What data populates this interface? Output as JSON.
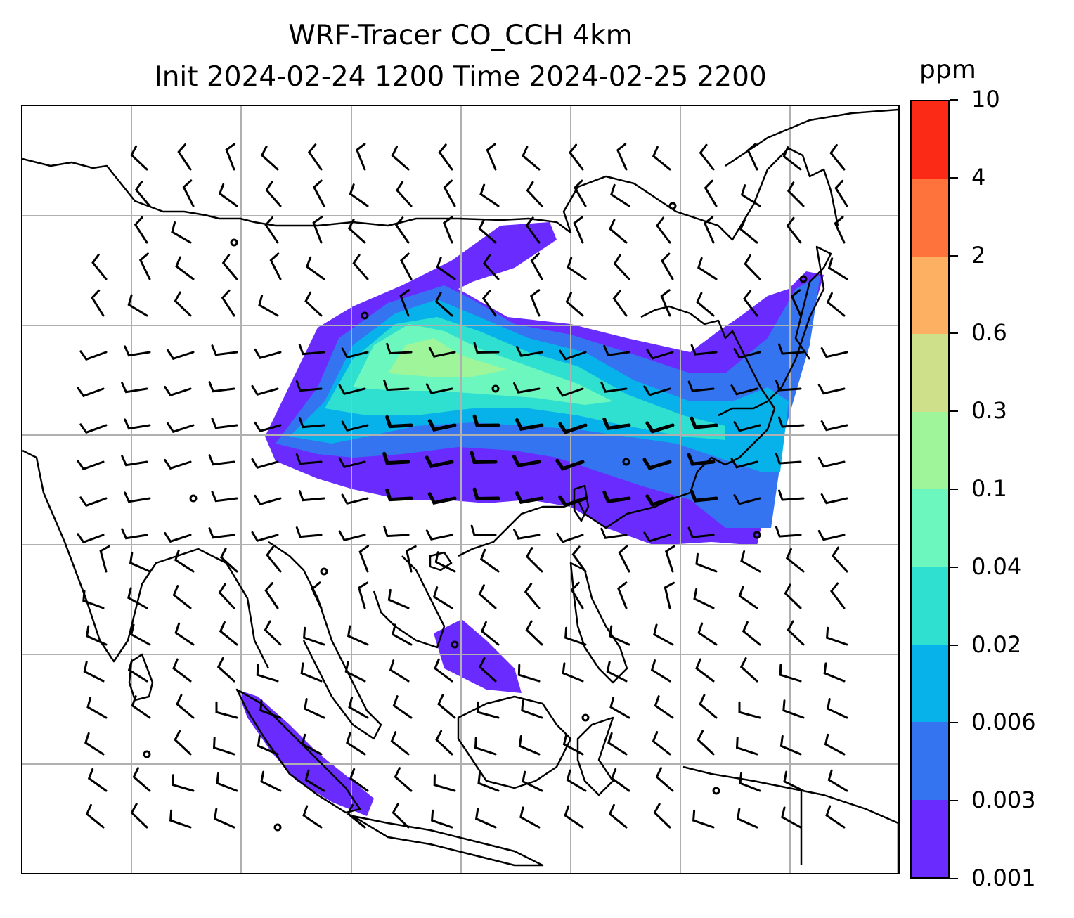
{
  "title": {
    "line1": "WRF-Tracer CO_CCH 4km",
    "line2": "Init 2024-02-24 1200 Time 2024-02-25 2200"
  },
  "colorbar": {
    "unit": "ppm",
    "levels": [
      "0.001",
      "0.003",
      "0.006",
      "0.02",
      "0.04",
      "0.1",
      "0.3",
      "0.6",
      "2",
      "4",
      "10"
    ],
    "colors": [
      "#6a2bff",
      "#3574f0",
      "#07b2ea",
      "#2fe0d0",
      "#6cf7bf",
      "#9ef59a",
      "#cfe08a",
      "#fdb061",
      "#fe723b",
      "#fb2a17"
    ]
  },
  "map": {
    "gridline_color": "#b0b0b0",
    "coastline_color": "#000000",
    "barb_color": "#000000"
  }
}
